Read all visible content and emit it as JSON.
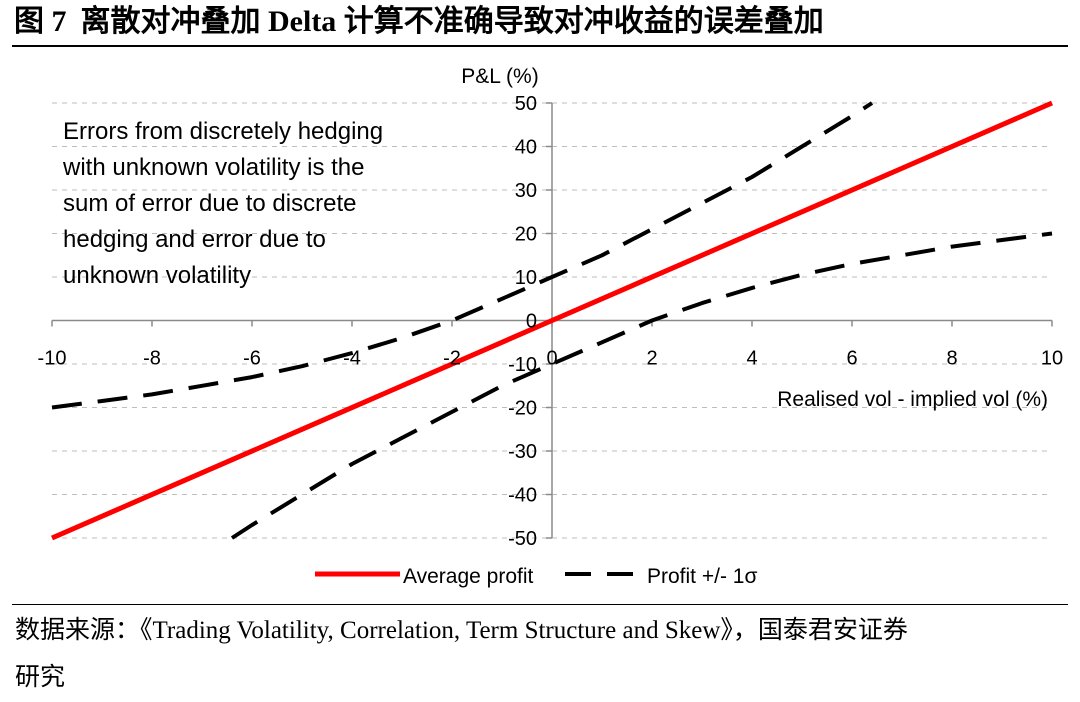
{
  "header": {
    "figure_label": "图 7",
    "title": "离散对冲叠加 Delta 计算不准确导致对冲收益的误差叠加"
  },
  "chart_data": {
    "type": "line",
    "xlabel": "Realised vol - implied vol (%)",
    "ylabel": "P&L (%)",
    "xlim": [
      -10,
      10
    ],
    "ylim": [
      -50,
      50
    ],
    "xticks": [
      -10,
      -8,
      -6,
      -4,
      -2,
      0,
      2,
      4,
      6,
      8,
      10
    ],
    "yticks": [
      50,
      40,
      30,
      20,
      10,
      0,
      -10,
      -20,
      -30,
      -40,
      -50
    ],
    "grid": true,
    "legend": "bottom",
    "annotation": [
      "Errors from discretely hedging",
      "with unknown volatility is the",
      "sum of error due to discrete",
      "hedging and error due to",
      "unknown volatility"
    ],
    "series": [
      {
        "name": "Average profit",
        "color": "#ff0000",
        "x": [
          -10,
          -5,
          0,
          5,
          10
        ],
        "y": [
          -50,
          -25,
          0,
          25,
          50
        ]
      },
      {
        "name": "Profit +/- 1σ",
        "color": "#000000",
        "upper": {
          "x": [
            -10,
            -9,
            -8,
            -7,
            -6,
            -5,
            -4,
            -3,
            -2,
            -1,
            0,
            1,
            2,
            3,
            4,
            5,
            6,
            6.4
          ],
          "y": [
            -20,
            -18.5,
            -17,
            -15,
            -13,
            -10.5,
            -7.5,
            -4,
            0,
            5,
            10,
            15,
            21,
            27,
            33,
            40,
            47,
            50
          ]
        },
        "lower": {
          "x": [
            -6.4,
            -6,
            -5,
            -4,
            -3,
            -2,
            -1,
            0,
            1,
            2,
            3,
            4,
            5,
            6,
            7,
            8,
            9,
            10
          ],
          "y": [
            -50,
            -47,
            -40,
            -33,
            -27,
            -21,
            -15,
            -10,
            -5,
            0,
            4,
            7.5,
            10.5,
            13,
            15,
            17,
            18.5,
            20
          ]
        }
      }
    ]
  },
  "source": {
    "lines": [
      "数据来源：《Trading Volatility, Correlation, Term Structure and Skew》，国泰君安证券",
      "研究"
    ]
  }
}
